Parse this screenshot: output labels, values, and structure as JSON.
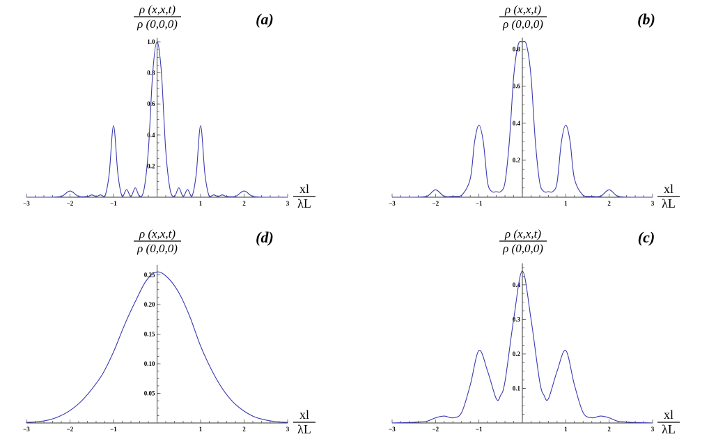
{
  "chart_data": [
    {
      "type": "line",
      "panel_label": "(a)",
      "ylabel_num": "ρ (x,x,t)",
      "ylabel_den": "ρ (0,0,0)",
      "xlabel_num": "xl",
      "xlabel_den": "λL",
      "xlim": [
        -3,
        3
      ],
      "ylim": [
        0,
        1.0
      ],
      "x_ticks": [
        "-3",
        "-2",
        "-1",
        "0",
        "1",
        "2",
        "3"
      ],
      "y_ticks": [
        "0.2",
        "0.4",
        "0.6",
        "0.8",
        "1.0"
      ],
      "y_tick_values": [
        0.2,
        0.4,
        0.6,
        0.8,
        1.0
      ],
      "x": [
        -3,
        -2.5,
        -2.2,
        -2.0,
        -1.8,
        -1.6,
        -1.5,
        -1.4,
        -1.3,
        -1.2,
        -1.1,
        -1.0,
        -0.9,
        -0.8,
        -0.7,
        -0.6,
        -0.5,
        -0.4,
        -0.3,
        -0.2,
        -0.1,
        0,
        0.1,
        0.2,
        0.3,
        0.4,
        0.5,
        0.6,
        0.7,
        0.8,
        0.9,
        1.0,
        1.1,
        1.2,
        1.3,
        1.4,
        1.5,
        1.6,
        1.8,
        2.0,
        2.2,
        2.5,
        3
      ],
      "y": [
        0.0,
        0.0,
        0.005,
        0.04,
        0.005,
        0.005,
        0.015,
        0.005,
        0.015,
        0.005,
        0.15,
        0.46,
        0.15,
        0.005,
        0.05,
        0.005,
        0.06,
        0.005,
        0.05,
        0.3,
        0.8,
        1.0,
        0.8,
        0.3,
        0.05,
        0.005,
        0.06,
        0.005,
        0.05,
        0.005,
        0.15,
        0.46,
        0.15,
        0.005,
        0.015,
        0.005,
        0.015,
        0.005,
        0.005,
        0.04,
        0.005,
        0.0,
        0.0
      ]
    },
    {
      "type": "line",
      "panel_label": "(b)",
      "ylabel_num": "ρ (x,x,t)",
      "ylabel_den": "ρ (0,0,0)",
      "xlabel_num": "xl",
      "xlabel_den": "λL",
      "xlim": [
        -3,
        3
      ],
      "ylim": [
        0,
        0.84
      ],
      "x_ticks": [
        "-3",
        "-2",
        "-1",
        "0",
        "1",
        "2",
        "3"
      ],
      "y_ticks": [
        "0.2",
        "0.4",
        "0.6",
        "0.8"
      ],
      "y_tick_values": [
        0.2,
        0.4,
        0.6,
        0.8
      ],
      "x": [
        -3,
        -2.5,
        -2.2,
        -2.0,
        -1.8,
        -1.6,
        -1.4,
        -1.2,
        -1.1,
        -1.0,
        -0.9,
        -0.8,
        -0.7,
        -0.6,
        -0.5,
        -0.4,
        -0.3,
        -0.2,
        -0.1,
        0,
        0.1,
        0.2,
        0.3,
        0.4,
        0.5,
        0.6,
        0.7,
        0.8,
        0.9,
        1.0,
        1.1,
        1.2,
        1.4,
        1.6,
        1.8,
        2.0,
        2.2,
        2.5,
        3
      ],
      "y": [
        0.0,
        0.0,
        0.005,
        0.04,
        0.005,
        0.005,
        0.01,
        0.1,
        0.3,
        0.39,
        0.3,
        0.08,
        0.03,
        0.03,
        0.03,
        0.08,
        0.3,
        0.65,
        0.82,
        0.84,
        0.82,
        0.65,
        0.3,
        0.08,
        0.03,
        0.03,
        0.03,
        0.08,
        0.3,
        0.39,
        0.3,
        0.1,
        0.01,
        0.005,
        0.005,
        0.04,
        0.005,
        0.0,
        0.0
      ]
    },
    {
      "type": "line",
      "panel_label": "(d)",
      "ylabel_num": "ρ (x,x,t)",
      "ylabel_den": "ρ (0,0,0)",
      "xlabel_num": "xl",
      "xlabel_den": "λL",
      "xlim": [
        -3,
        3
      ],
      "ylim": [
        0,
        0.26
      ],
      "x_ticks": [
        "-3",
        "-2",
        "-1",
        "0",
        "1",
        "2",
        "3"
      ],
      "y_ticks": [
        "0.05",
        "0.10",
        "0.15",
        "0.20",
        "0.25"
      ],
      "y_tick_values": [
        0.05,
        0.1,
        0.15,
        0.2,
        0.25
      ],
      "x": [
        -3,
        -2.75,
        -2.5,
        -2.25,
        -2,
        -1.75,
        -1.5,
        -1.25,
        -1,
        -0.75,
        -0.5,
        -0.25,
        0,
        0.25,
        0.5,
        0.75,
        1,
        1.25,
        1.5,
        1.75,
        2,
        2.25,
        2.5,
        2.75,
        3
      ],
      "y": [
        0.001,
        0.002,
        0.005,
        0.011,
        0.021,
        0.036,
        0.057,
        0.083,
        0.12,
        0.165,
        0.205,
        0.24,
        0.255,
        0.245,
        0.22,
        0.18,
        0.13,
        0.09,
        0.058,
        0.035,
        0.02,
        0.01,
        0.005,
        0.002,
        0.001
      ]
    },
    {
      "type": "line",
      "panel_label": "(c)",
      "ylabel_num": "ρ (x,x,t)",
      "ylabel_den": "ρ (0,0,0)",
      "xlabel_num": "xl",
      "xlabel_den": "λL",
      "xlim": [
        -3,
        3
      ],
      "ylim": [
        0,
        0.45
      ],
      "x_ticks": [
        "-3",
        "-2",
        "-1",
        "0",
        "1",
        "2",
        "3"
      ],
      "y_ticks": [
        "0.1",
        "0.2",
        "0.3",
        "0.4"
      ],
      "y_tick_values": [
        0.1,
        0.2,
        0.3,
        0.4
      ],
      "x": [
        -3,
        -2.5,
        -2.2,
        -2.0,
        -1.8,
        -1.6,
        -1.4,
        -1.2,
        -1.0,
        -0.8,
        -0.6,
        -0.5,
        -0.4,
        -0.2,
        0,
        0.2,
        0.4,
        0.5,
        0.6,
        0.8,
        1.0,
        1.2,
        1.4,
        1.6,
        1.8,
        2.0,
        2.2,
        2.5,
        3
      ],
      "y": [
        0.0,
        0.002,
        0.005,
        0.015,
        0.02,
        0.015,
        0.03,
        0.11,
        0.21,
        0.15,
        0.07,
        0.08,
        0.12,
        0.3,
        0.44,
        0.3,
        0.12,
        0.08,
        0.07,
        0.15,
        0.21,
        0.11,
        0.03,
        0.015,
        0.02,
        0.015,
        0.005,
        0.002,
        0.0
      ]
    }
  ]
}
